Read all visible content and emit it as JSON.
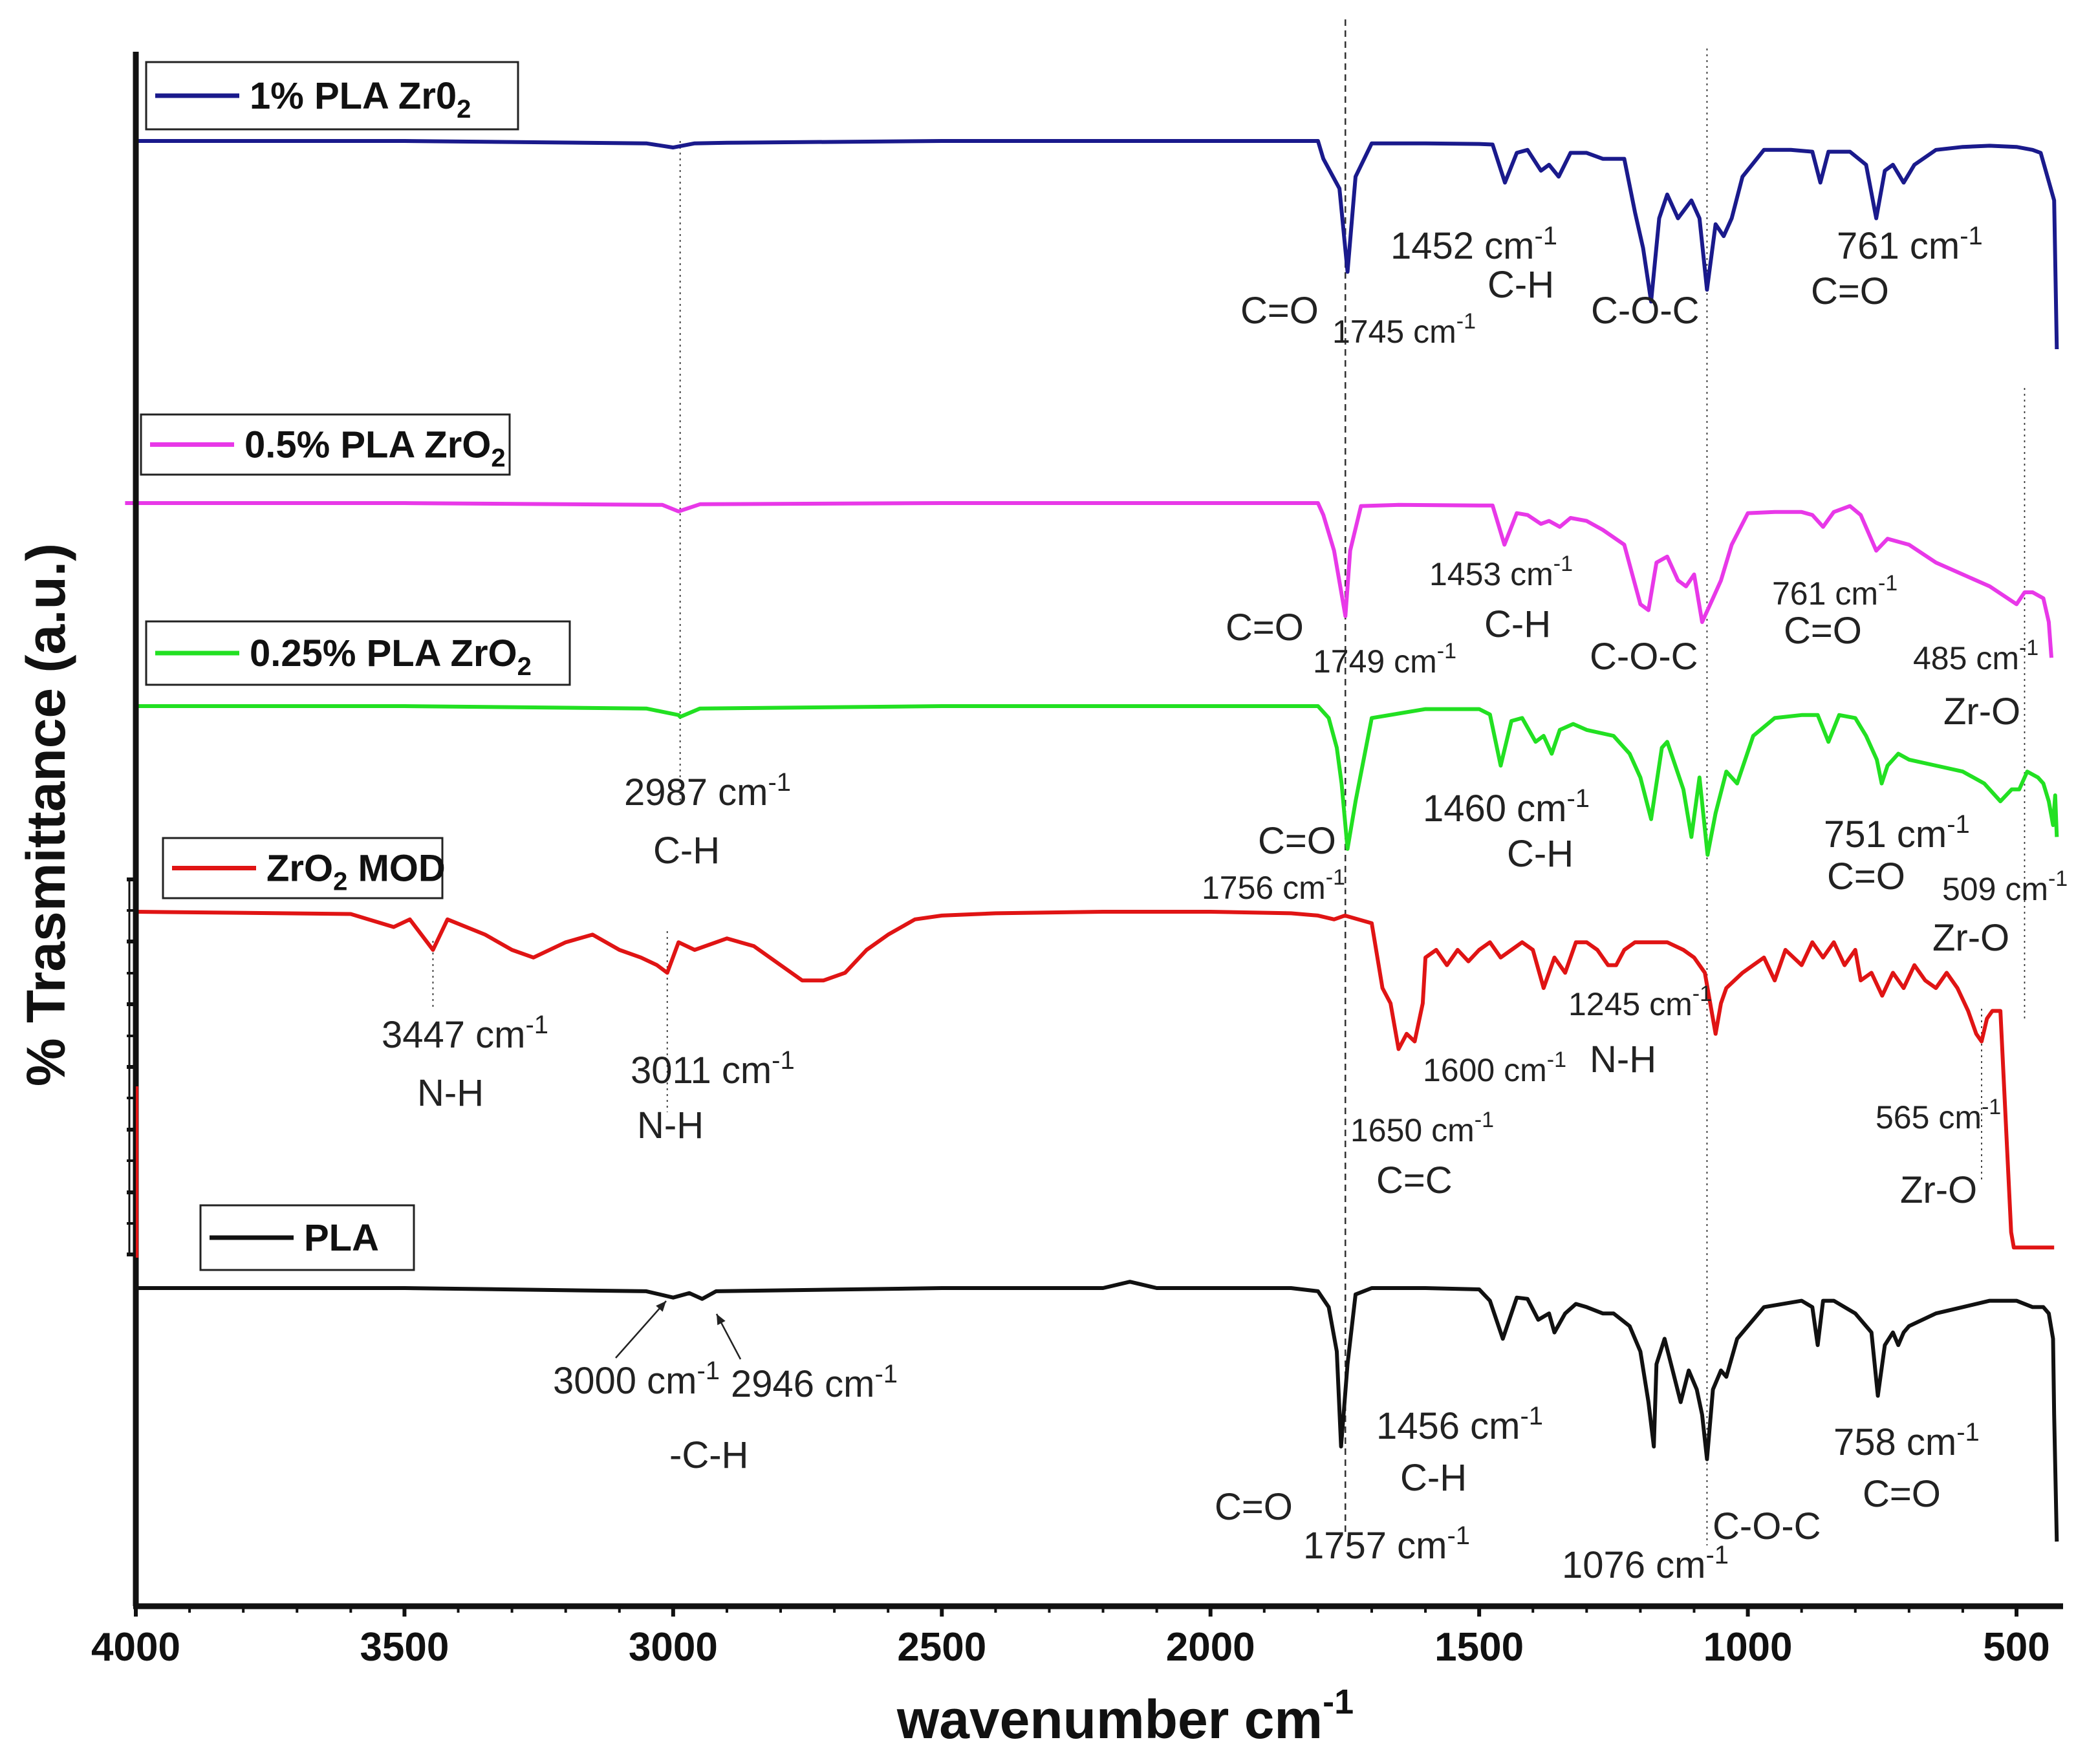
{
  "chart_data": {
    "type": "line",
    "title": "",
    "xlabel": "wavenumber cm",
    "xlabel_superscript": "-1",
    "ylabel": "% Trasmittance (a.u.)",
    "xlim": [
      4000,
      400
    ],
    "x_reversed": true,
    "grid": false,
    "x_ticks": [
      4000,
      3500,
      3000,
      2500,
      2000,
      1500,
      1000,
      500
    ],
    "x_tick_labels": [
      "4000",
      "3500",
      "3000",
      "2500",
      "2000",
      "1500",
      "1000",
      "500"
    ],
    "legend_position": "per-series, stacked on left",
    "series": [
      {
        "name": "1% PLA Zr0",
        "legend_label": "1% PLA Zr0",
        "legend_sub": "2",
        "color": "#1a1a8c",
        "baseline": 10,
        "x": [
          4000,
          3500,
          3050,
          3000,
          2960,
          2900,
          2500,
          2150,
          2000,
          1800,
          1790,
          1760,
          1745,
          1730,
          1700,
          1600,
          1500,
          1475,
          1452,
          1430,
          1410,
          1385,
          1370,
          1352,
          1330,
          1300,
          1270,
          1230,
          1210,
          1195,
          1180,
          1165,
          1150,
          1130,
          1105,
          1090,
          1076,
          1060,
          1045,
          1030,
          1010,
          970,
          920,
          880,
          865,
          850,
          810,
          780,
          761,
          745,
          730,
          710,
          690,
          650,
          600,
          550,
          500,
          470,
          455,
          430,
          425
        ],
        "y": [
          10,
          10,
          9.6,
          8.9,
          9.6,
          9.7,
          10,
          10,
          10,
          10,
          7,
          2,
          -12,
          4,
          9.6,
          9.6,
          9.5,
          9.4,
          3,
          8,
          8.5,
          5,
          6,
          4,
          8,
          8,
          7,
          7,
          -2,
          -8,
          -17,
          -3,
          1,
          -3,
          0,
          -3,
          -15,
          -4,
          -6,
          -3,
          4,
          8.5,
          8.5,
          8.2,
          3,
          8.2,
          8.2,
          6,
          -3,
          5,
          6,
          3,
          6,
          8.5,
          9,
          9.2,
          9,
          8.5,
          8,
          0,
          -25
        ]
      },
      {
        "name": "0.5% PLA ZrO",
        "legend_label": "0.5% PLA ZrO",
        "legend_sub": "2",
        "color": "#e838e8",
        "baseline": 10,
        "x": [
          4020,
          3500,
          3020,
          2990,
          2950,
          2500,
          2000,
          1800,
          1790,
          1770,
          1749,
          1740,
          1720,
          1650,
          1500,
          1475,
          1453,
          1430,
          1410,
          1385,
          1370,
          1350,
          1330,
          1300,
          1270,
          1230,
          1215,
          1200,
          1185,
          1170,
          1150,
          1130,
          1115,
          1100,
          1085,
          1065,
          1050,
          1030,
          1000,
          950,
          900,
          880,
          860,
          840,
          810,
          790,
          761,
          740,
          700,
          650,
          600,
          550,
          500,
          485,
          470,
          450,
          440,
          435
        ],
        "y": [
          10,
          10,
          9.7,
          8.6,
          9.8,
          10,
          10,
          10,
          8,
          2,
          -9,
          2,
          9.5,
          9.7,
          9.6,
          9.6,
          3,
          8.3,
          8,
          6.5,
          7,
          6,
          7.5,
          7,
          5.5,
          3,
          -2,
          -7,
          -8,
          0,
          1,
          -3,
          -4,
          -2,
          -10,
          -6,
          -3,
          3,
          8.3,
          8.5,
          8.5,
          8,
          6,
          8.5,
          9.5,
          8,
          2,
          4,
          3,
          0,
          -2,
          -4,
          -7,
          -5,
          -5,
          -6,
          -10,
          -16
        ]
      },
      {
        "name": "0.25% PLA ZrO",
        "legend_label": "0.25% PLA ZrO",
        "legend_sub": "2",
        "color": "#22e022",
        "baseline": 10,
        "x": [
          4000,
          3500,
          3050,
          2990,
          2987,
          2950,
          2500,
          2000,
          1800,
          1780,
          1765,
          1756,
          1745,
          1730,
          1700,
          1600,
          1500,
          1480,
          1460,
          1440,
          1420,
          1395,
          1380,
          1365,
          1350,
          1325,
          1300,
          1250,
          1220,
          1200,
          1180,
          1160,
          1150,
          1135,
          1120,
          1105,
          1090,
          1075,
          1060,
          1040,
          1020,
          990,
          950,
          900,
          870,
          850,
          830,
          800,
          780,
          760,
          751,
          740,
          720,
          700,
          650,
          600,
          560,
          530,
          509,
          495,
          480,
          460,
          450,
          440,
          432,
          428,
          425
        ],
        "y": [
          10,
          10,
          9.6,
          8.5,
          8.2,
          9.6,
          10,
          10,
          10,
          8,
          3,
          -3,
          -14,
          -6,
          8,
          9.5,
          9.5,
          8.6,
          0,
          7.5,
          8,
          4,
          5,
          2,
          6,
          7,
          6,
          5,
          2,
          -2,
          -9,
          3,
          4,
          0,
          -4,
          -12,
          -2,
          -15,
          -8,
          -1,
          -3,
          5,
          8,
          8.5,
          8.5,
          4,
          8.5,
          8,
          5,
          1,
          -3,
          0,
          2,
          1,
          0,
          -1,
          -3,
          -6,
          -4,
          -4,
          -1,
          -2,
          -3,
          -6,
          -10,
          -5,
          -12
        ]
      },
      {
        "name": "ZrO MOD",
        "legend_label": "ZrO",
        "legend_sub": "2",
        "legend_suffix": " MOD",
        "color": "#e01414",
        "baseline": 10,
        "x": [
          4000,
          3600,
          3520,
          3490,
          3447,
          3420,
          3350,
          3300,
          3260,
          3200,
          3150,
          3100,
          3060,
          3030,
          3011,
          2990,
          2960,
          2900,
          2850,
          2800,
          2760,
          2720,
          2680,
          2640,
          2600,
          2550,
          2500,
          2400,
          2200,
          2000,
          1850,
          1800,
          1770,
          1750,
          1700,
          1680,
          1665,
          1650,
          1635,
          1620,
          1605,
          1600,
          1580,
          1560,
          1540,
          1520,
          1500,
          1480,
          1460,
          1440,
          1420,
          1400,
          1380,
          1360,
          1340,
          1320,
          1300,
          1280,
          1260,
          1245,
          1230,
          1210,
          1180,
          1150,
          1120,
          1100,
          1080,
          1060,
          1050,
          1040,
          1010,
          990,
          970,
          950,
          930,
          900,
          880,
          860,
          840,
          820,
          800,
          790,
          770,
          750,
          730,
          710,
          690,
          670,
          650,
          630,
          610,
          590,
          575,
          565,
          555,
          545,
          530,
          510,
          505,
          502,
          500,
          460,
          440,
          430
        ],
        "y": [
          10,
          9.7,
          8,
          9,
          5,
          9,
          7,
          5,
          4,
          6,
          7,
          5,
          4,
          3,
          2,
          6,
          5,
          6.5,
          5.5,
          3,
          1,
          1,
          2,
          5,
          7,
          9,
          9.5,
          9.8,
          10,
          10,
          9.8,
          9.5,
          9,
          9.5,
          8.5,
          0,
          -2,
          -8,
          -6,
          -7,
          -2,
          4,
          5,
          3,
          5,
          3.5,
          5,
          6,
          4,
          5,
          6,
          5,
          0,
          4,
          2,
          6,
          6,
          5,
          3,
          3,
          5,
          6,
          6,
          6,
          5,
          4,
          2,
          -6,
          -2,
          0,
          2,
          3,
          4,
          1,
          5,
          3,
          6,
          4,
          6,
          3,
          5,
          1,
          2,
          -1,
          2,
          0,
          3,
          1,
          0,
          2,
          0,
          -3,
          -6,
          -7,
          -4,
          -3,
          -3,
          -32,
          -34,
          -34,
          -34,
          -34,
          -34,
          -34
        ]
      },
      {
        "name": "PLA",
        "legend_label": "PLA",
        "color": "#111111",
        "baseline": 10,
        "x": [
          4000,
          3500,
          3050,
          3000,
          2970,
          2946,
          2920,
          2500,
          2200,
          2150,
          2100,
          2000,
          1850,
          1800,
          1780,
          1765,
          1757,
          1745,
          1730,
          1700,
          1600,
          1500,
          1480,
          1456,
          1430,
          1410,
          1390,
          1370,
          1360,
          1340,
          1320,
          1300,
          1270,
          1250,
          1220,
          1200,
          1185,
          1175,
          1170,
          1155,
          1140,
          1125,
          1110,
          1095,
          1085,
          1076,
          1065,
          1050,
          1040,
          1020,
          1000,
          970,
          900,
          880,
          870,
          860,
          840,
          800,
          770,
          758,
          745,
          730,
          720,
          710,
          700,
          650,
          600,
          550,
          500,
          470,
          450,
          440,
          432,
          430,
          425
        ],
        "y": [
          10,
          10,
          9.5,
          8.5,
          9.2,
          8.3,
          9.5,
          10,
          10,
          11,
          10,
          10,
          10,
          9.5,
          7,
          0,
          -15,
          -2,
          9,
          10,
          10,
          9.8,
          8,
          2,
          8.5,
          8.3,
          5,
          6,
          3,
          6,
          7.5,
          7,
          6,
          6,
          4,
          0,
          -8,
          -15,
          -2,
          2,
          -3,
          -8,
          -3,
          -6,
          -10,
          -17,
          -6,
          -3,
          -4,
          2,
          4,
          7,
          8,
          7,
          1,
          8,
          8,
          6,
          3,
          -7,
          1,
          3,
          1,
          3,
          4,
          6,
          7,
          8,
          8,
          7,
          7,
          6,
          2,
          -10,
          -30
        ]
      }
    ],
    "annotations": [
      {
        "series": "1% PLA Zr0",
        "label": "1452 cm",
        "sup": "-1",
        "group": "A"
      },
      {
        "series": "1% PLA Zr0",
        "label": "C-H",
        "group": "A"
      },
      {
        "series": "1% PLA Zr0",
        "label": "C=O",
        "group": "A"
      },
      {
        "series": "1% PLA Zr0",
        "label": "1745 cm",
        "sup": "-1",
        "group": "A"
      },
      {
        "series": "1% PLA Zr0",
        "label": "C-O-C",
        "group": "A"
      },
      {
        "series": "1% PLA Zr0",
        "label": "761 cm",
        "sup": "-1",
        "group": "A"
      },
      {
        "series": "1% PLA Zr0",
        "label": "C=O",
        "group": "A"
      },
      {
        "series": "0.5% PLA ZrO",
        "label": "1453 cm",
        "sup": "-1",
        "group": "B"
      },
      {
        "series": "0.5% PLA ZrO",
        "label": "C-H",
        "group": "B"
      },
      {
        "series": "0.5% PLA ZrO",
        "label": "C=O",
        "group": "B"
      },
      {
        "series": "0.5% PLA ZrO",
        "label": "1749 cm",
        "sup": "-1",
        "group": "B"
      },
      {
        "series": "0.5% PLA ZrO",
        "label": "C-O-C",
        "group": "B"
      },
      {
        "series": "0.5% PLA ZrO",
        "label": "761 cm",
        "sup": "-1",
        "group": "B"
      },
      {
        "series": "0.5% PLA ZrO",
        "label": "C=O",
        "group": "B"
      },
      {
        "series": "0.5% PLA ZrO",
        "label": "485 cm",
        "sup": "-1",
        "group": "B"
      },
      {
        "series": "0.5% PLA ZrO",
        "label": "Zr-O",
        "group": "B"
      },
      {
        "series": "0.25% PLA ZrO",
        "label": "2987 cm",
        "sup": "-1",
        "group": "C"
      },
      {
        "series": "0.25% PLA ZrO",
        "label": "C-H",
        "group": "C"
      },
      {
        "series": "0.25% PLA ZrO",
        "label": "C=O",
        "group": "C"
      },
      {
        "series": "0.25% PLA ZrO",
        "label": "1756 cm",
        "sup": "-1",
        "group": "C"
      },
      {
        "series": "0.25% PLA ZrO",
        "label": "1460 cm",
        "sup": "-1",
        "group": "C"
      },
      {
        "series": "0.25% PLA ZrO",
        "label": "C-H",
        "group": "C"
      },
      {
        "series": "0.25% PLA ZrO",
        "label": "751 cm",
        "sup": "-1",
        "group": "C"
      },
      {
        "series": "0.25% PLA ZrO",
        "label": "C=O",
        "group": "C"
      },
      {
        "series": "0.25% PLA ZrO",
        "label": "509 cm",
        "sup": "-1",
        "group": "C"
      },
      {
        "series": "0.25% PLA ZrO",
        "label": "Zr-O",
        "group": "C"
      },
      {
        "series": "ZrO MOD",
        "label": "3447 cm",
        "sup": "-1",
        "group": "D"
      },
      {
        "series": "ZrO MOD",
        "label": "N-H",
        "group": "D"
      },
      {
        "series": "ZrO MOD",
        "label": "3011 cm",
        "sup": "-1",
        "group": "D"
      },
      {
        "series": "ZrO MOD",
        "label": "N-H",
        "group": "D"
      },
      {
        "series": "ZrO MOD",
        "label": "1245 cm",
        "sup": "-1",
        "group": "D"
      },
      {
        "series": "ZrO MOD",
        "label": "1600 cm",
        "sup": "-1",
        "group": "D"
      },
      {
        "series": "ZrO MOD",
        "label": "N-H",
        "group": "D"
      },
      {
        "series": "ZrO MOD",
        "label": "1650 cm",
        "sup": "-1",
        "group": "D"
      },
      {
        "series": "ZrO MOD",
        "label": "C=C",
        "group": "D"
      },
      {
        "series": "ZrO MOD",
        "label": "565 cm",
        "sup": "-1",
        "group": "D"
      },
      {
        "series": "ZrO MOD",
        "label": "Zr-O",
        "group": "D"
      },
      {
        "series": "PLA",
        "label": "3000 cm",
        "sup": "-1",
        "group": "E"
      },
      {
        "series": "PLA",
        "label": "2946 cm",
        "sup": "-1",
        "group": "E"
      },
      {
        "series": "PLA",
        "label": "-C-H",
        "group": "E"
      },
      {
        "series": "PLA",
        "label": "1456 cm",
        "sup": "-1",
        "group": "E"
      },
      {
        "series": "PLA",
        "label": "C-H",
        "group": "E"
      },
      {
        "series": "PLA",
        "label": "C=O",
        "group": "E"
      },
      {
        "series": "PLA",
        "label": "1757 cm",
        "sup": "-1",
        "group": "E"
      },
      {
        "series": "PLA",
        "label": "1076 cm",
        "sup": "-1",
        "group": "E"
      },
      {
        "series": "PLA",
        "label": "C-O-C",
        "group": "E"
      },
      {
        "series": "PLA",
        "label": "758 cm",
        "sup": "-1",
        "group": "E"
      },
      {
        "series": "PLA",
        "label": "C=O",
        "group": "E"
      }
    ],
    "reference_lines_x": [
      2987,
      1749,
      1076,
      3447,
      3011,
      565,
      485
    ]
  }
}
